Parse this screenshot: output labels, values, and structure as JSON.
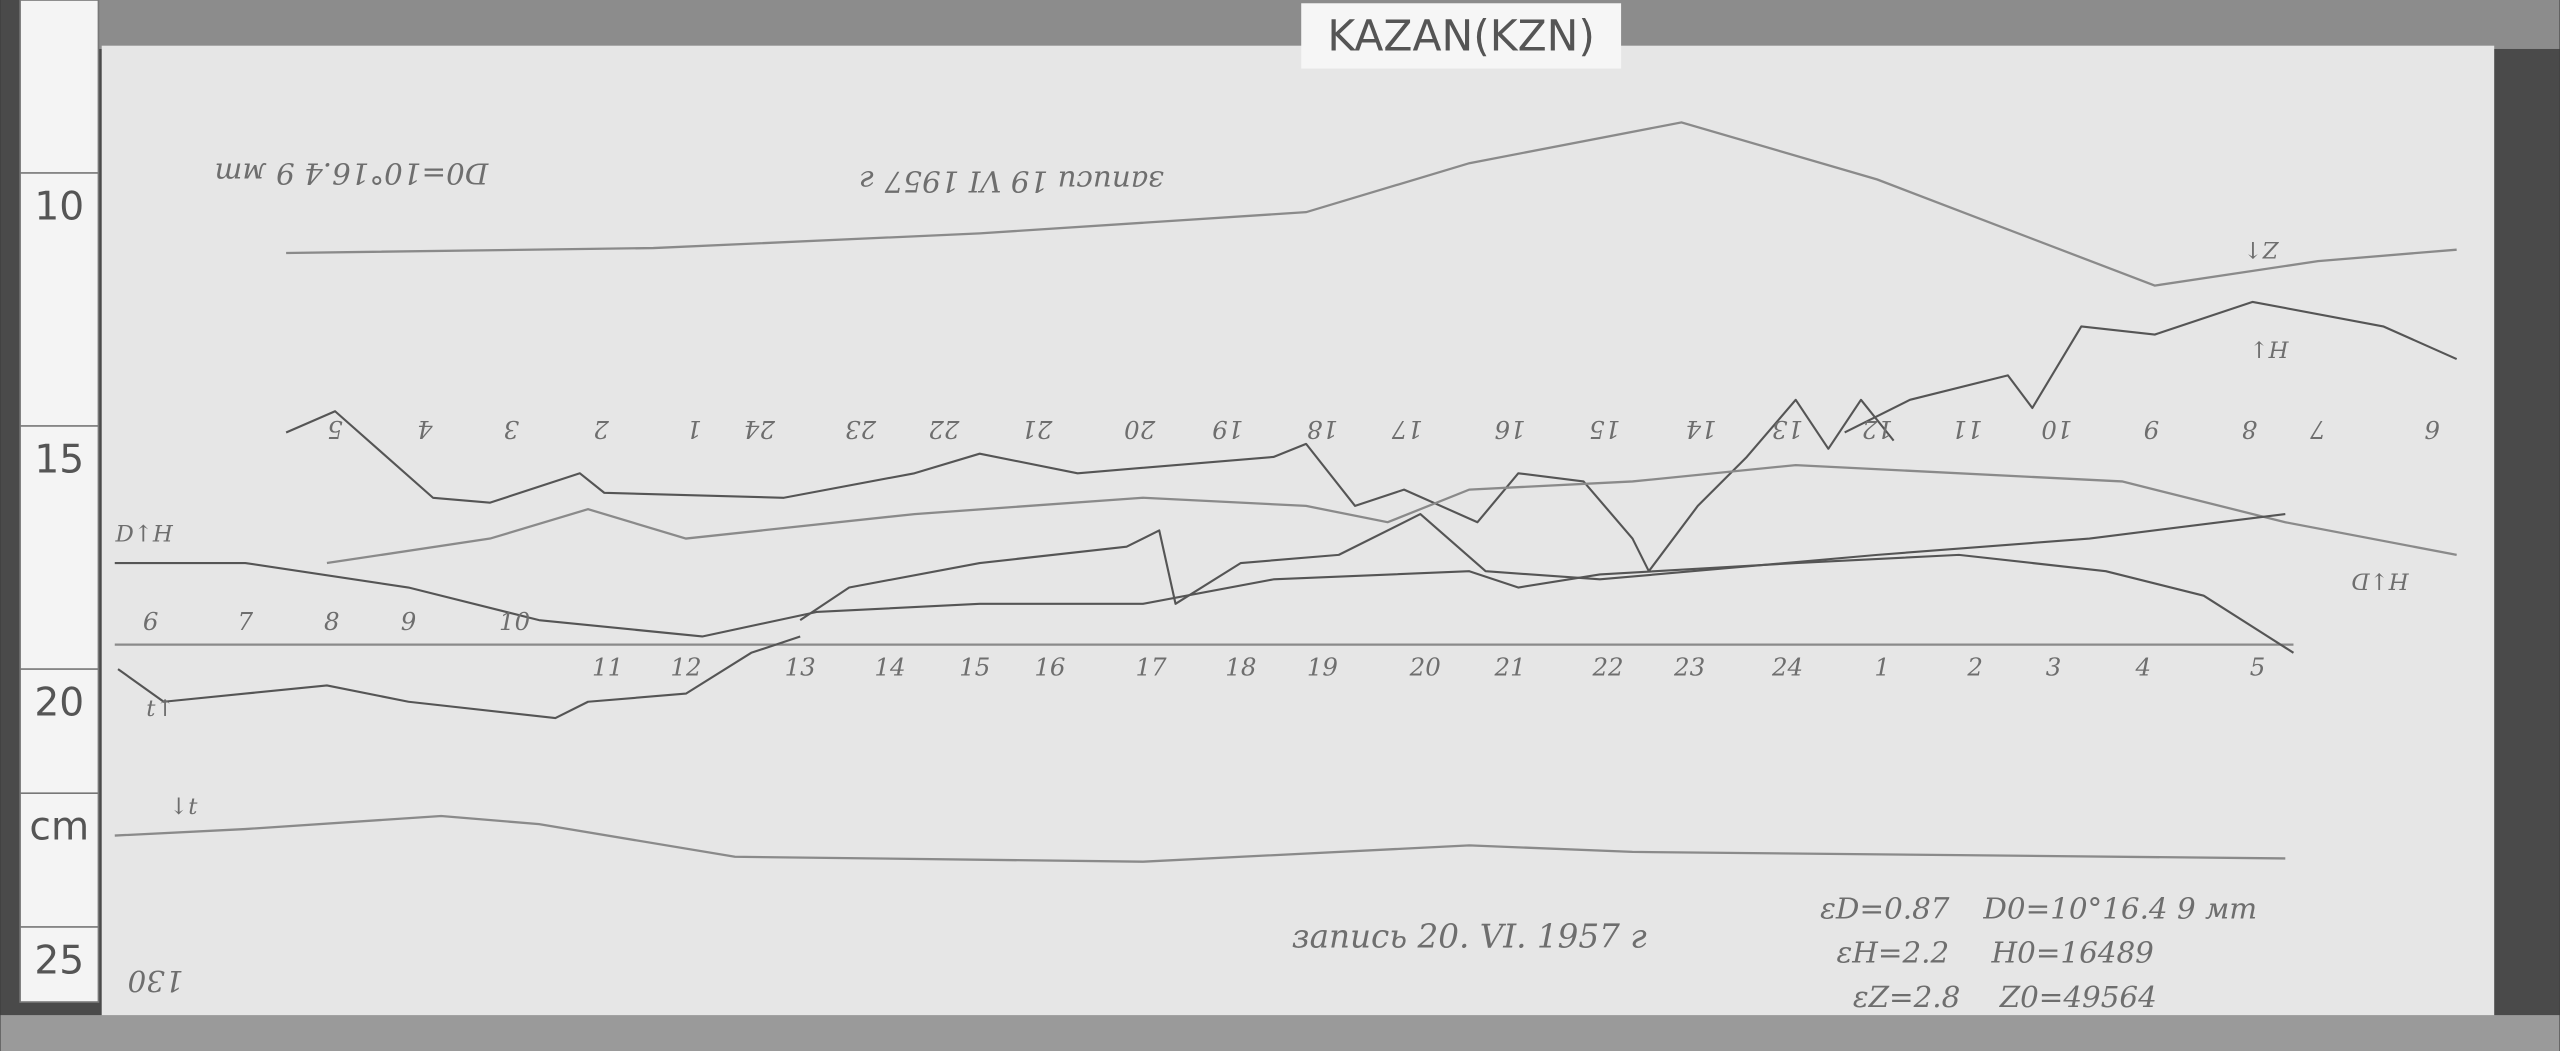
{
  "label": "KAZAN(KZN)",
  "ruler": [
    "10",
    "15",
    "20",
    "cm",
    "25"
  ],
  "top_hours": [
    "5",
    "4",
    "3",
    "2",
    "1",
    "24",
    "23",
    "22",
    "21",
    "20",
    "19",
    "18",
    "17",
    "16",
    "15",
    "14",
    "13",
    "12",
    "11",
    "10",
    "9",
    "8",
    "7",
    "6"
  ],
  "bottom_hours": [
    "6",
    "7",
    "8",
    "9",
    "10",
    "11",
    "12",
    "13",
    "14",
    "15",
    "16",
    "17",
    "18",
    "19",
    "20",
    "21",
    "22",
    "23",
    "24",
    "1",
    "2",
    "3",
    "4",
    "5"
  ],
  "trace_labels": [
    "Z↑",
    "H↓",
    "D↑H",
    "H↓D",
    "t↑",
    "↓t"
  ],
  "notes": {
    "top_date": "записи 19 VI 1957 г",
    "top_base": "D0=10°16.4 9 мт",
    "bottom_date": "запись 20. VI. 1957 г",
    "scales": [
      "εD=0.87",
      "εH=2.2",
      "εZ=2.8"
    ],
    "bases": [
      "D0=10°16.4 9 мт",
      "H0=16489",
      "Z0=49564"
    ],
    "sheet": "130"
  }
}
